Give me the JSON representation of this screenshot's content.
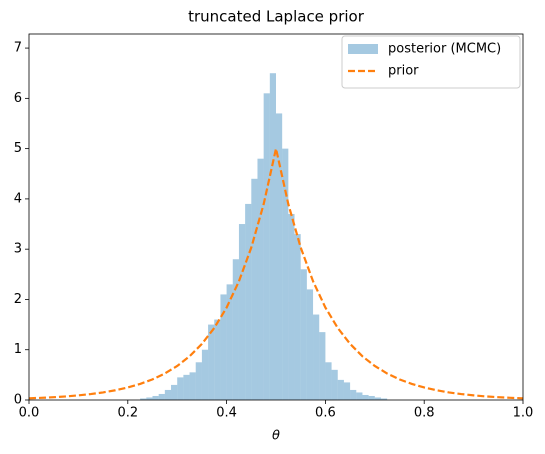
{
  "chart_data": {
    "type": "histogram",
    "title": "truncated Laplace prior",
    "xlabel": "θ",
    "xlim": [
      0,
      1
    ],
    "ylim": [
      0,
      7.28
    ],
    "xticks": [
      {
        "value": 0,
        "label": "0.0"
      },
      0.2,
      0.4,
      0.6,
      0.8,
      {
        "value": 1,
        "label": "1.0"
      }
    ],
    "yticks": [
      0,
      1,
      2,
      3,
      4,
      5,
      6,
      7
    ],
    "legend": "upper right",
    "series": [
      {
        "type": "histogram",
        "name": "posterior (MCMC)",
        "color": "#1f77b4",
        "alpha": 0.4,
        "bins": [
          0.225,
          0.2375,
          0.25,
          0.2625,
          0.275,
          0.2875,
          0.3,
          0.3125,
          0.325,
          0.3375,
          0.35,
          0.3625,
          0.375,
          0.3875,
          0.4,
          0.4125,
          0.425,
          0.4375,
          0.45,
          0.4625,
          0.475,
          0.4875,
          0.5,
          0.5125,
          0.525,
          0.5375,
          0.55,
          0.5625,
          0.575,
          0.5875,
          0.6,
          0.6125,
          0.625,
          0.6375,
          0.65,
          0.6625,
          0.675,
          0.6875,
          0.7,
          0.7125,
          0.725
        ],
        "values": [
          0.03,
          0.05,
          0.08,
          0.12,
          0.2,
          0.3,
          0.45,
          0.5,
          0.55,
          0.75,
          1.0,
          1.5,
          1.6,
          2.1,
          2.3,
          2.8,
          3.5,
          3.9,
          4.4,
          4.8,
          6.1,
          6.5,
          5.7,
          5.0,
          3.7,
          3.3,
          2.6,
          2.2,
          1.7,
          1.35,
          0.75,
          0.6,
          0.4,
          0.35,
          0.2,
          0.15,
          0.1,
          0.08,
          0.05,
          0.03
        ]
      },
      {
        "type": "line",
        "name": "prior",
        "color": "#ff7f0e",
        "dashed": true,
        "x": [
          0,
          0.025,
          0.05,
          0.075,
          0.1,
          0.125,
          0.15,
          0.175,
          0.2,
          0.225,
          0.25,
          0.275,
          0.3,
          0.325,
          0.35,
          0.375,
          0.4,
          0.425,
          0.45,
          0.475,
          0.5,
          0.525,
          0.55,
          0.575,
          0.6,
          0.625,
          0.65,
          0.675,
          0.7,
          0.725,
          0.75,
          0.775,
          0.8,
          0.825,
          0.85,
          0.875,
          0.9,
          0.925,
          0.95,
          0.975,
          1
        ],
        "values": [
          0.034,
          0.043,
          0.056,
          0.071,
          0.092,
          0.118,
          0.151,
          0.194,
          0.249,
          0.32,
          0.41,
          0.527,
          0.677,
          0.869,
          1.116,
          1.433,
          1.839,
          2.362,
          3.033,
          3.894,
          5,
          3.894,
          3.033,
          2.362,
          1.839,
          1.433,
          1.116,
          0.869,
          0.677,
          0.527,
          0.41,
          0.32,
          0.249,
          0.194,
          0.151,
          0.118,
          0.092,
          0.071,
          0.056,
          0.043,
          0.034
        ]
      }
    ]
  }
}
